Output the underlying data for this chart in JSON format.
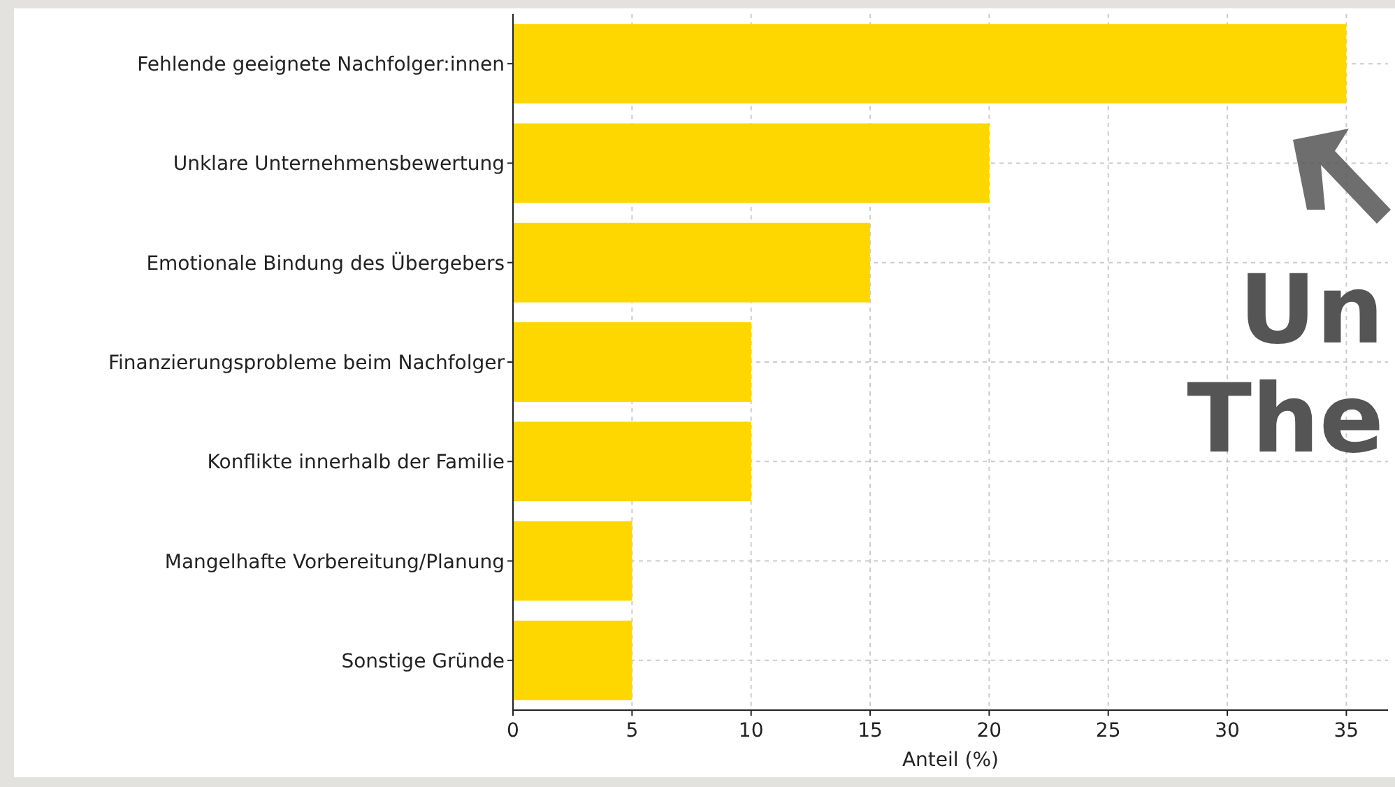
{
  "chart_data": {
    "type": "bar",
    "orientation": "horizontal",
    "xlabel": "Anteil (%)",
    "categories": [
      "Fehlende geeignete Nachfolger:innen",
      "Unklare Unternehmensbewertung",
      "Emotionale Bindung des Übergebers",
      "Finanzierungsprobleme beim Nachfolger",
      "Konflikte innerhalb der Familie",
      "Mangelhafte Vorbereitung/Planung",
      "Sonstige Gründe"
    ],
    "values": [
      35,
      20,
      15,
      10,
      10,
      5,
      5
    ],
    "color": "#ffd700",
    "xlim": [
      0,
      36.75
    ],
    "xticks": [
      0,
      5,
      10,
      15,
      20,
      25,
      30,
      35
    ],
    "grid": true,
    "annotations": [
      "Un",
      "The"
    ]
  }
}
